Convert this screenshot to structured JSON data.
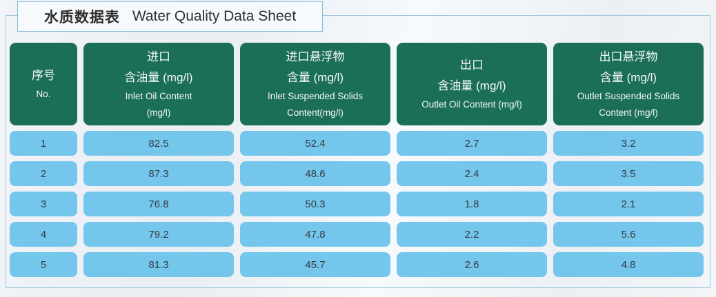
{
  "title": {
    "zh": "水质数据表",
    "en": "Water Quality Data Sheet"
  },
  "colors": {
    "header_bg": "#1b6f58",
    "cell_bg": "#74c6ec",
    "panel_border": "#a3c9dc",
    "title_border": "#85bcd6"
  },
  "chart_data": {
    "type": "table",
    "title": "水质数据表 Water Quality Data Sheet",
    "columns": [
      {
        "lines": [
          "序号",
          "No."
        ]
      },
      {
        "lines": [
          "进口",
          "含油量 (mg/l)",
          "Inlet Oil Content",
          "(mg/l)"
        ]
      },
      {
        "lines": [
          "进口悬浮物",
          "含量 (mg/l)",
          "Inlet Suspended Solids",
          "Content(mg/l)"
        ]
      },
      {
        "lines": [
          "出口",
          "含油量 (mg/l)",
          "Outlet Oil Content (mg/l)"
        ]
      },
      {
        "lines": [
          "出口悬浮物",
          "含量 (mg/l)",
          "Outlet Suspended Solids",
          "Content (mg/l)"
        ]
      }
    ],
    "rows": [
      [
        "1",
        "82.5",
        "52.4",
        "2.7",
        "3.2"
      ],
      [
        "2",
        "87.3",
        "48.6",
        "2.4",
        "3.5"
      ],
      [
        "3",
        "76.8",
        "50.3",
        "1.8",
        "2.1"
      ],
      [
        "4",
        "79.2",
        "47.8",
        "2.2",
        "5.6"
      ],
      [
        "5",
        "81.3",
        "45.7",
        "2.6",
        "4.8"
      ]
    ]
  }
}
